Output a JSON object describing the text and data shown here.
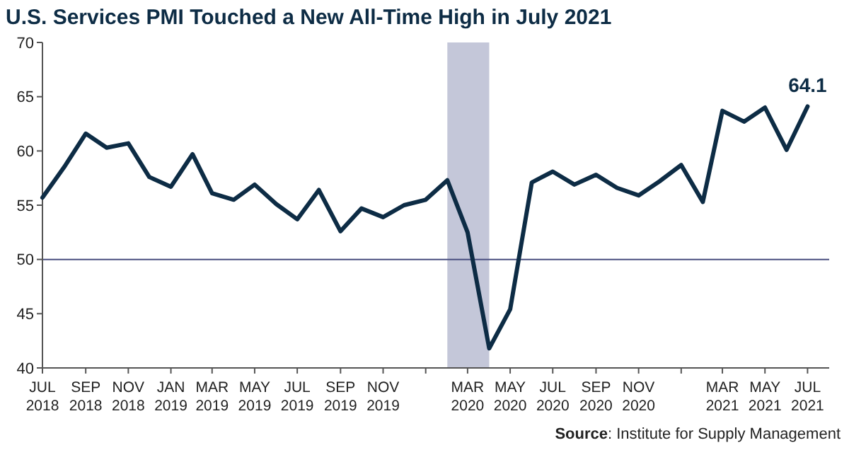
{
  "chart_data": {
    "type": "line",
    "title": "U.S. Services PMI Touched a New All-Time High in July 2021",
    "x": [
      "2018-07",
      "2018-08",
      "2018-09",
      "2018-10",
      "2018-11",
      "2018-12",
      "2019-01",
      "2019-02",
      "2019-03",
      "2019-04",
      "2019-05",
      "2019-06",
      "2019-07",
      "2019-08",
      "2019-09",
      "2019-10",
      "2019-11",
      "2019-12",
      "2020-01",
      "2020-02",
      "2020-03",
      "2020-04",
      "2020-05",
      "2020-06",
      "2020-07",
      "2020-08",
      "2020-09",
      "2020-10",
      "2020-11",
      "2020-12",
      "2021-01",
      "2021-02",
      "2021-03",
      "2021-04",
      "2021-05",
      "2021-06",
      "2021-07"
    ],
    "series": [
      {
        "color": "#0d2c45",
        "values": [
          55.7,
          58.5,
          61.6,
          60.3,
          60.7,
          57.6,
          56.7,
          59.7,
          56.1,
          55.5,
          56.9,
          55.1,
          53.7,
          56.4,
          52.6,
          54.7,
          53.9,
          55.0,
          55.5,
          57.3,
          52.5,
          41.8,
          45.4,
          57.1,
          58.1,
          56.9,
          57.8,
          56.6,
          55.9,
          57.2,
          58.7,
          55.3,
          63.7,
          62.7,
          64.0,
          60.1,
          64.1
        ],
        "value_labels": [
          null,
          null,
          null,
          null,
          null,
          null,
          null,
          null,
          null,
          null,
          null,
          null,
          null,
          null,
          null,
          null,
          null,
          null,
          null,
          null,
          null,
          null,
          null,
          null,
          null,
          null,
          null,
          null,
          null,
          null,
          null,
          null,
          null,
          null,
          null,
          null,
          "64.1"
        ]
      }
    ],
    "xlim": [
      "2018-07",
      "2021-08"
    ],
    "xticks": [
      {
        "value": "2018-07",
        "label": "JUL 2018"
      },
      {
        "value": "2018-09",
        "label": "SEP 2018"
      },
      {
        "value": "2018-11",
        "label": "NOV 2018"
      },
      {
        "value": "2019-01",
        "label": "JAN 2019"
      },
      {
        "value": "2019-03",
        "label": "MAR 2019"
      },
      {
        "value": "2019-05",
        "label": "MAY 2019"
      },
      {
        "value": "2019-07",
        "label": "JUL 2019"
      },
      {
        "value": "2019-09",
        "label": "SEP 2019"
      },
      {
        "value": "2019-11",
        "label": "NOV 2019"
      },
      {
        "value": "2020-01",
        "label": null
      },
      {
        "value": "2020-03",
        "label": "MAR 2020"
      },
      {
        "value": "2020-05",
        "label": "MAY 2020"
      },
      {
        "value": "2020-07",
        "label": "JUL 2020"
      },
      {
        "value": "2020-09",
        "label": "SEP 2020"
      },
      {
        "value": "2020-11",
        "label": "NOV 2020"
      },
      {
        "value": "2021-01",
        "label": null
      },
      {
        "value": "2021-03",
        "label": "MAR 2021"
      },
      {
        "value": "2021-05",
        "label": "MAY 2021"
      },
      {
        "value": "2021-07",
        "label": "JUL 2021"
      }
    ],
    "ylim": [
      40,
      70
    ],
    "yticks": [
      40,
      45,
      50,
      55,
      60,
      65,
      70
    ],
    "ref_lines": [
      {
        "axis": "y",
        "value": 50,
        "label": null,
        "color": "#4a4f80"
      }
    ],
    "bands": [
      {
        "axis": "x",
        "from": "2020-02",
        "to": "2020-04",
        "label": null,
        "color": "#c4c7d9"
      }
    ],
    "grid": false,
    "marker": "none",
    "line_style": "solid",
    "annotations": [
      "Source: Institute for Supply Management"
    ]
  }
}
